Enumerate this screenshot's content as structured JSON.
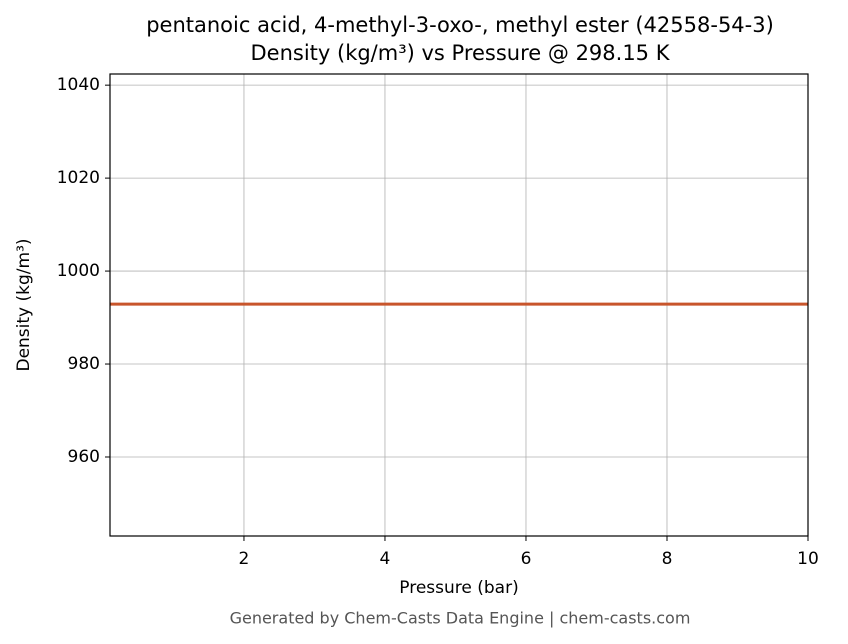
{
  "chart_data": {
    "type": "line",
    "title": "pentanoic acid, 4-methyl-3-oxo-, methyl ester (42558-54-3)",
    "subtitle": "Density (kg/m³) vs Pressure @ 298.15 K",
    "x_label": "Pressure (bar)",
    "y_label": "Density (kg/m³)",
    "x": [
      0.1,
      10
    ],
    "series": [
      {
        "name": "Density",
        "color": "#c8552b",
        "values": [
          992.9,
          992.9
        ]
      }
    ],
    "xlim": [
      0.1,
      10
    ],
    "xticks": [
      2,
      4,
      6,
      8,
      10
    ],
    "ylim": [
      943,
      1042.4
    ],
    "yticks": [
      960,
      980,
      1000,
      1020,
      1040
    ],
    "grid": true,
    "legend": false,
    "footer": "Generated by Chem-Casts Data Engine | chem-casts.com"
  }
}
